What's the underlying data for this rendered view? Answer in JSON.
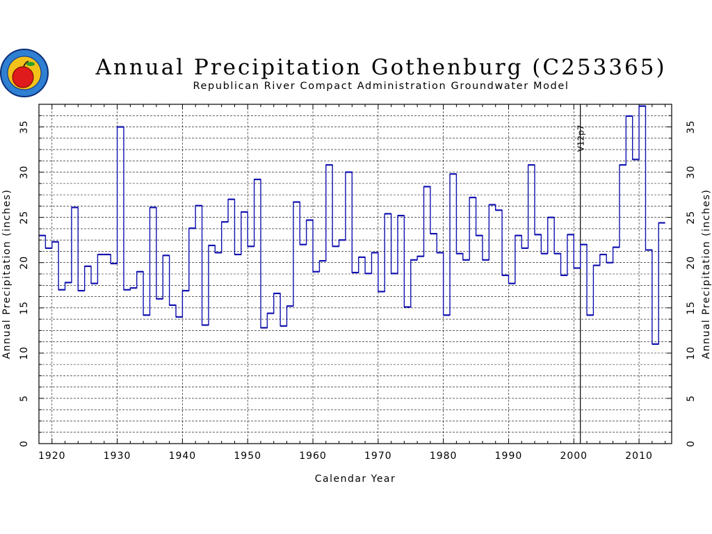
{
  "chart_data": {
    "type": "line",
    "step": "post",
    "title": "Annual Precipitation Gothenburg (C253365)",
    "subtitle": "Republican River Compact Administration Groundwater Model",
    "xlabel": "Calendar Year",
    "ylabel": "Annual Precipitation (inches)",
    "ylabel_right": "Annual Precipitation (inches)",
    "xlim": [
      1918,
      2015
    ],
    "ylim": [
      0,
      37.5
    ],
    "x_ticks": [
      1920,
      1930,
      1940,
      1950,
      1960,
      1970,
      1980,
      1990,
      2000,
      2010
    ],
    "x_tick_labels": [
      "1920",
      "1930",
      "1940",
      "1950",
      "1960",
      "1970",
      "1980",
      "1990",
      "2000",
      "2010"
    ],
    "y_ticks": [
      0,
      5,
      10,
      15,
      20,
      25,
      30,
      35
    ],
    "y_tick_labels": [
      "0",
      "5",
      "10",
      "15",
      "20",
      "25",
      "30",
      "35"
    ],
    "grid": true,
    "line_color": "#1010b0",
    "annotations": [
      {
        "text": "V12p7",
        "x": 2001,
        "vertical_line": true
      }
    ],
    "series": [
      {
        "x": [
          1918,
          1919,
          1920,
          1921,
          1922,
          1923,
          1924,
          1925,
          1926,
          1927,
          1928,
          1929,
          1930,
          1931,
          1932,
          1933,
          1934,
          1935,
          1936,
          1937,
          1938,
          1939,
          1940,
          1941,
          1942,
          1943,
          1944,
          1945,
          1946,
          1947,
          1948,
          1949,
          1950,
          1951,
          1952,
          1953,
          1954,
          1955,
          1956,
          1957,
          1958,
          1959,
          1960,
          1961,
          1962,
          1963,
          1964,
          1965,
          1966,
          1967,
          1968,
          1969,
          1970,
          1971,
          1972,
          1973,
          1974,
          1975,
          1976,
          1977,
          1978,
          1979,
          1980,
          1981,
          1982,
          1983,
          1984,
          1985,
          1986,
          1987,
          1988,
          1989,
          1990,
          1991,
          1992,
          1993,
          1994,
          1995,
          1996,
          1997,
          1998,
          1999,
          2000,
          2001,
          2002,
          2003,
          2004,
          2005,
          2006,
          2007,
          2008,
          2009,
          2010,
          2011,
          2012,
          2013
        ],
        "values": [
          23.0,
          21.6,
          22.3,
          17.0,
          17.8,
          26.1,
          16.9,
          19.6,
          17.7,
          20.9,
          20.9,
          19.9,
          35.0,
          17.0,
          17.2,
          19.0,
          14.2,
          26.1,
          16.0,
          20.8,
          15.3,
          14.0,
          16.9,
          23.8,
          26.3,
          13.1,
          21.9,
          21.1,
          24.5,
          27.0,
          20.9,
          25.6,
          21.8,
          29.2,
          12.8,
          14.4,
          16.6,
          13.0,
          15.2,
          26.7,
          22.0,
          24.7,
          19.0,
          20.2,
          30.8,
          21.8,
          22.5,
          30.0,
          18.9,
          20.6,
          18.8,
          21.1,
          16.8,
          25.4,
          18.8,
          25.2,
          15.1,
          20.3,
          20.7,
          28.4,
          23.2,
          21.1,
          14.2,
          29.8,
          21.0,
          20.3,
          27.2,
          23.0,
          20.3,
          26.4,
          25.8,
          18.6,
          17.7,
          23.0,
          21.6,
          30.8,
          23.1,
          21.0,
          25.0,
          21.0,
          18.6,
          23.1,
          19.4,
          22.0,
          14.2,
          19.7,
          20.9,
          20.0,
          21.7,
          30.8,
          36.2,
          31.4,
          37.3,
          21.4,
          11.0,
          24.4
        ]
      }
    ]
  }
}
